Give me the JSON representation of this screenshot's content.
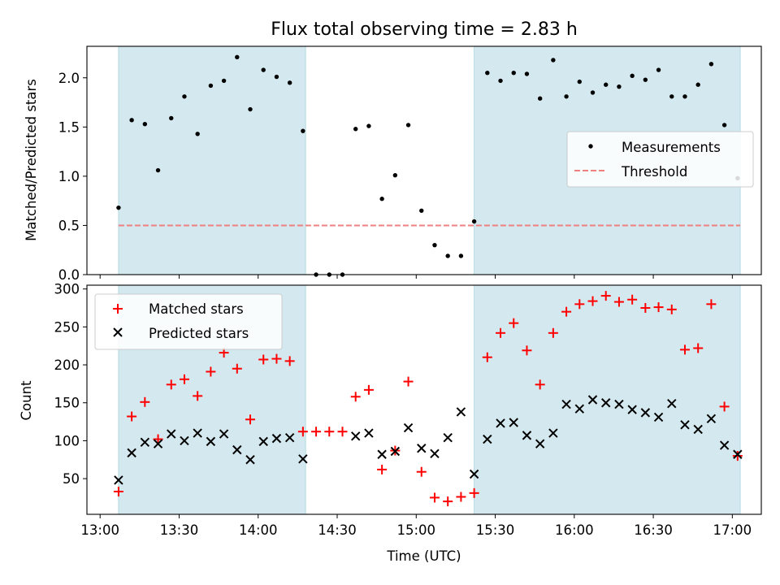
{
  "chart_data": [
    {
      "type": "scatter",
      "title": "Flux total observing time = 2.83 h",
      "xlabel": "",
      "ylabel": "Matched/Predicted stars",
      "ylim": [
        0,
        2.32
      ],
      "yticks": [
        "0.0",
        "0.5",
        "1.0",
        "1.5",
        "2.0"
      ],
      "ytick_values": [
        0,
        0.5,
        1.0,
        1.5,
        2.0
      ],
      "xlim": [
        "12:55",
        "17:11"
      ],
      "legend_placement": "center-right",
      "shaded_intervals": [
        [
          "13:07",
          "14:18"
        ],
        [
          "15:22",
          "17:03"
        ]
      ],
      "shade_color": "#d4e9ef",
      "series": [
        {
          "name": "Measurements",
          "marker": "dot",
          "color": "#000000",
          "points": [
            [
              "13:07",
              0.68
            ],
            [
              "13:12",
              1.57
            ],
            [
              "13:17",
              1.53
            ],
            [
              "13:22",
              1.06
            ],
            [
              "13:27",
              1.59
            ],
            [
              "13:32",
              1.81
            ],
            [
              "13:37",
              1.43
            ],
            [
              "13:42",
              1.92
            ],
            [
              "13:47",
              1.97
            ],
            [
              "13:52",
              2.21
            ],
            [
              "13:57",
              1.68
            ],
            [
              "14:02",
              2.08
            ],
            [
              "14:07",
              2.01
            ],
            [
              "14:12",
              1.95
            ],
            [
              "14:17",
              1.46
            ],
            [
              "14:22",
              0.0
            ],
            [
              "14:27",
              0.0
            ],
            [
              "14:32",
              0.0
            ],
            [
              "14:37",
              1.48
            ],
            [
              "14:42",
              1.51
            ],
            [
              "14:47",
              0.77
            ],
            [
              "14:52",
              1.01
            ],
            [
              "14:57",
              1.52
            ],
            [
              "15:02",
              0.65
            ],
            [
              "15:07",
              0.3
            ],
            [
              "15:12",
              0.19
            ],
            [
              "15:17",
              0.19
            ],
            [
              "15:22",
              0.54
            ],
            [
              "15:27",
              2.05
            ],
            [
              "15:32",
              1.97
            ],
            [
              "15:37",
              2.05
            ],
            [
              "15:42",
              2.04
            ],
            [
              "15:47",
              1.79
            ],
            [
              "15:52",
              2.18
            ],
            [
              "15:57",
              1.81
            ],
            [
              "16:02",
              1.96
            ],
            [
              "16:07",
              1.85
            ],
            [
              "16:12",
              1.93
            ],
            [
              "16:17",
              1.91
            ],
            [
              "16:22",
              2.02
            ],
            [
              "16:27",
              1.98
            ],
            [
              "16:32",
              2.08
            ],
            [
              "16:37",
              1.81
            ],
            [
              "16:42",
              1.81
            ],
            [
              "16:47",
              1.93
            ],
            [
              "16:52",
              2.14
            ],
            [
              "16:57",
              1.52
            ],
            [
              "17:02",
              0.98
            ]
          ]
        },
        {
          "name": "Threshold",
          "marker": "dashed-line",
          "color": "#f08080",
          "value": 0.5,
          "x_range": [
            "13:07",
            "17:03"
          ]
        }
      ]
    },
    {
      "type": "scatter",
      "title": "",
      "xlabel": "Time (UTC)",
      "ylabel": "Count",
      "ylim": [
        3,
        305
      ],
      "yticks": [
        "50",
        "100",
        "150",
        "200",
        "250",
        "300"
      ],
      "ytick_values": [
        50,
        100,
        150,
        200,
        250,
        300
      ],
      "xlim": [
        "12:55",
        "17:11"
      ],
      "xticks": [
        "13:00",
        "13:30",
        "14:00",
        "14:30",
        "15:00",
        "15:30",
        "16:00",
        "16:30",
        "17:00"
      ],
      "legend_placement": "upper-left",
      "shaded_intervals": [
        [
          "13:07",
          "14:18"
        ],
        [
          "15:22",
          "17:03"
        ]
      ],
      "shade_color": "#d4e9ef",
      "series": [
        {
          "name": "Matched stars",
          "marker": "plus",
          "color": "#ff0000",
          "points": [
            [
              "13:07",
              33
            ],
            [
              "13:12",
              132
            ],
            [
              "13:17",
              151
            ],
            [
              "13:22",
              102
            ],
            [
              "13:27",
              174
            ],
            [
              "13:32",
              181
            ],
            [
              "13:37",
              159
            ],
            [
              "13:42",
              191
            ],
            [
              "13:47",
              216
            ],
            [
              "13:52",
              195
            ],
            [
              "13:57",
              128
            ],
            [
              "14:02",
              207
            ],
            [
              "14:07",
              208
            ],
            [
              "14:12",
              205
            ],
            [
              "14:17",
              112
            ],
            [
              "14:22",
              112
            ],
            [
              "14:27",
              112
            ],
            [
              "14:32",
              112
            ],
            [
              "14:37",
              158
            ],
            [
              "14:42",
              167
            ],
            [
              "14:47",
              62
            ],
            [
              "14:52",
              87
            ],
            [
              "14:57",
              178
            ],
            [
              "15:02",
              59
            ],
            [
              "15:07",
              25
            ],
            [
              "15:12",
              20
            ],
            [
              "15:17",
              26
            ],
            [
              "15:22",
              31
            ],
            [
              "15:27",
              210
            ],
            [
              "15:32",
              242
            ],
            [
              "15:37",
              255
            ],
            [
              "15:42",
              219
            ],
            [
              "15:47",
              174
            ],
            [
              "15:52",
              242
            ],
            [
              "15:57",
              270
            ],
            [
              "16:02",
              280
            ],
            [
              "16:07",
              284
            ],
            [
              "16:12",
              291
            ],
            [
              "16:17",
              283
            ],
            [
              "16:22",
              286
            ],
            [
              "16:27",
              275
            ],
            [
              "16:32",
              276
            ],
            [
              "16:37",
              273
            ],
            [
              "16:42",
              220
            ],
            [
              "16:47",
              222
            ],
            [
              "16:52",
              280
            ],
            [
              "16:57",
              145
            ],
            [
              "17:02",
              80
            ]
          ]
        },
        {
          "name": "Predicted stars",
          "marker": "x",
          "color": "#000000",
          "points": [
            [
              "13:07",
              48
            ],
            [
              "13:12",
              84
            ],
            [
              "13:17",
              98
            ],
            [
              "13:22",
              96
            ],
            [
              "13:27",
              109
            ],
            [
              "13:32",
              100
            ],
            [
              "13:37",
              110
            ],
            [
              "13:42",
              99
            ],
            [
              "13:47",
              109
            ],
            [
              "13:52",
              88
            ],
            [
              "13:57",
              75
            ],
            [
              "14:02",
              99
            ],
            [
              "14:07",
              103
            ],
            [
              "14:12",
              104
            ],
            [
              "14:17",
              76
            ],
            [
              "14:37",
              106
            ],
            [
              "14:42",
              110
            ],
            [
              "14:47",
              82
            ],
            [
              "14:52",
              86
            ],
            [
              "14:57",
              117
            ],
            [
              "15:02",
              90
            ],
            [
              "15:07",
              83
            ],
            [
              "15:12",
              104
            ],
            [
              "15:17",
              138
            ],
            [
              "15:22",
              56
            ],
            [
              "15:27",
              102
            ],
            [
              "15:32",
              123
            ],
            [
              "15:37",
              124
            ],
            [
              "15:42",
              107
            ],
            [
              "15:47",
              96
            ],
            [
              "15:52",
              110
            ],
            [
              "15:57",
              148
            ],
            [
              "16:02",
              142
            ],
            [
              "16:07",
              154
            ],
            [
              "16:12",
              150
            ],
            [
              "16:17",
              148
            ],
            [
              "16:22",
              141
            ],
            [
              "16:27",
              137
            ],
            [
              "16:32",
              131
            ],
            [
              "16:37",
              149
            ],
            [
              "16:42",
              121
            ],
            [
              "16:47",
              115
            ],
            [
              "16:52",
              129
            ],
            [
              "16:57",
              94
            ],
            [
              "17:02",
              82
            ]
          ]
        }
      ]
    }
  ]
}
